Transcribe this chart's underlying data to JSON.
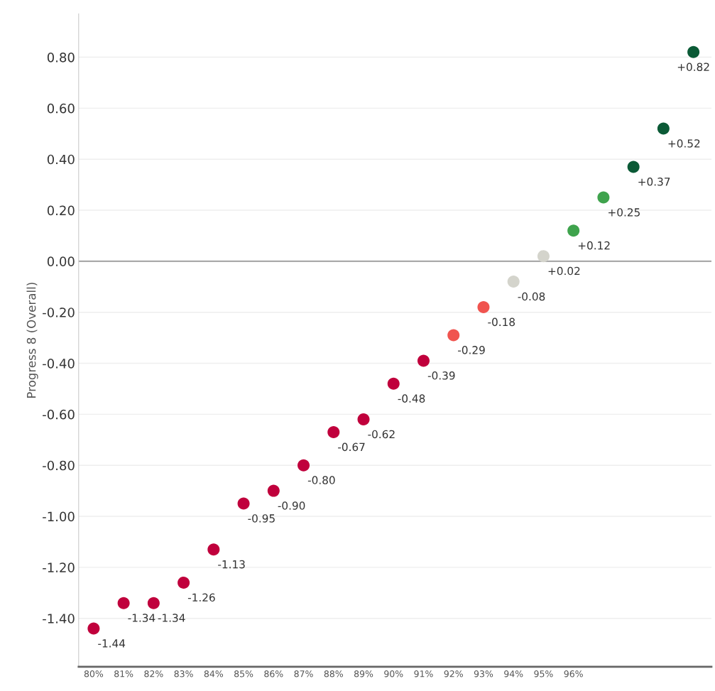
{
  "chart_data": {
    "type": "scatter",
    "ylabel": "Progress 8 (Overall)",
    "categories": [
      "80%",
      "81%",
      "82%",
      "83%",
      "84%",
      "85%",
      "86%",
      "87%",
      "88%",
      "89%",
      "90%",
      "91%",
      "92%",
      "93%",
      "94%",
      "95%",
      "96%",
      null,
      null,
      null,
      null
    ],
    "values": [
      -1.44,
      -1.34,
      -1.34,
      -1.26,
      -1.13,
      -0.95,
      -0.9,
      -0.8,
      -0.67,
      -0.62,
      -0.48,
      -0.39,
      -0.29,
      -0.18,
      -0.08,
      0.02,
      0.12,
      0.25,
      0.37,
      0.52,
      0.82
    ],
    "value_labels": [
      "-1.44",
      "-1.34",
      "-1.34",
      "-1.26",
      "-1.13",
      "-0.95",
      "-0.90",
      "-0.80",
      "-0.67",
      "-0.62",
      "-0.48",
      "-0.39",
      "-0.29",
      "-0.18",
      "-0.08",
      "+0.02",
      "+0.12",
      "+0.25",
      "+0.37",
      "+0.52",
      "+0.82"
    ],
    "colors": [
      "#c0003c",
      "#c0003c",
      "#c0003c",
      "#c0003c",
      "#c0003c",
      "#c0003c",
      "#c0003c",
      "#c0003c",
      "#c0003c",
      "#c0003c",
      "#c0003c",
      "#c0003c",
      "#f0544f",
      "#f0544f",
      "#d4d4cc",
      "#d4d4cc",
      "#3fa34d",
      "#3fa34d",
      "#0b5a36",
      "#0b5a36",
      "#0b5a36"
    ],
    "ylim": [
      -1.59,
      0.97
    ],
    "yticks": [
      {
        "value": -1.4,
        "label": "-1.40"
      },
      {
        "value": -1.2,
        "label": "-1.20"
      },
      {
        "value": -1.0,
        "label": "-1.00"
      },
      {
        "value": -0.8,
        "label": "-0.80"
      },
      {
        "value": -0.6,
        "label": "-0.60"
      },
      {
        "value": -0.4,
        "label": "-0.40"
      },
      {
        "value": -0.2,
        "label": "-0.20"
      },
      {
        "value": 0.0,
        "label": "0.00"
      },
      {
        "value": 0.2,
        "label": "0.20"
      },
      {
        "value": 0.4,
        "label": "0.40"
      },
      {
        "value": 0.6,
        "label": "0.60"
      },
      {
        "value": 0.8,
        "label": "0.80"
      }
    ],
    "ref_lines": [
      {
        "axis": "y",
        "value": 0,
        "color": "#aaaaaa"
      }
    ],
    "grid": "y",
    "marker": "circle"
  }
}
